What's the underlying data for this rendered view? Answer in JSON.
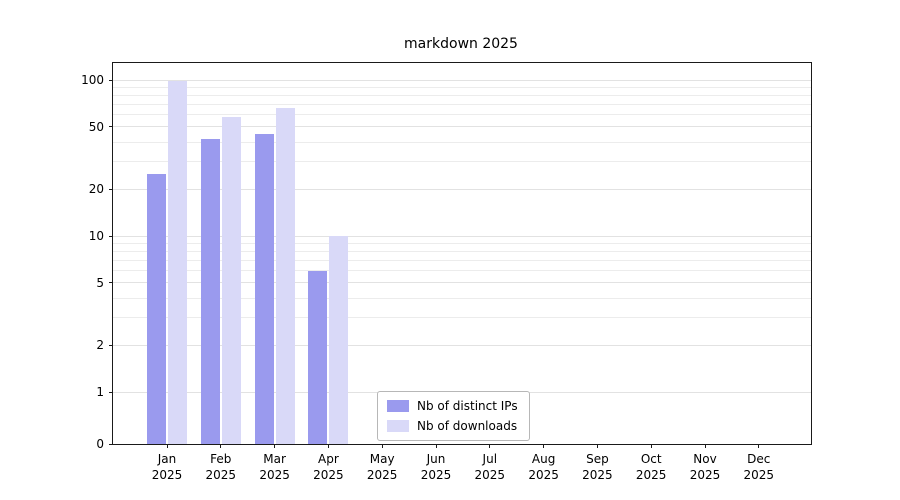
{
  "title": "markdown 2025",
  "chart_data": {
    "type": "bar",
    "yscale": "symlog",
    "ylim": [
      0,
      128
    ],
    "grid": true,
    "legend_position": "lower-center",
    "yticks": [
      0,
      1,
      2,
      5,
      10,
      20,
      50,
      100
    ],
    "categories": [
      {
        "month": "Jan",
        "year": "2025"
      },
      {
        "month": "Feb",
        "year": "2025"
      },
      {
        "month": "Mar",
        "year": "2025"
      },
      {
        "month": "Apr",
        "year": "2025"
      },
      {
        "month": "May",
        "year": "2025"
      },
      {
        "month": "Jun",
        "year": "2025"
      },
      {
        "month": "Jul",
        "year": "2025"
      },
      {
        "month": "Aug",
        "year": "2025"
      },
      {
        "month": "Sep",
        "year": "2025"
      },
      {
        "month": "Oct",
        "year": "2025"
      },
      {
        "month": "Nov",
        "year": "2025"
      },
      {
        "month": "Dec",
        "year": "2025"
      }
    ],
    "series": [
      {
        "name": "Nb of distinct IPs",
        "color": "#9a9aee",
        "values": [
          25,
          42,
          45,
          6,
          0,
          0,
          0,
          0,
          0,
          0,
          0,
          0
        ]
      },
      {
        "name": "Nb of downloads",
        "color": "#d9d9f8",
        "values": [
          98,
          58,
          66,
          10,
          0,
          0,
          0,
          0,
          0,
          0,
          0,
          0
        ]
      }
    ]
  }
}
